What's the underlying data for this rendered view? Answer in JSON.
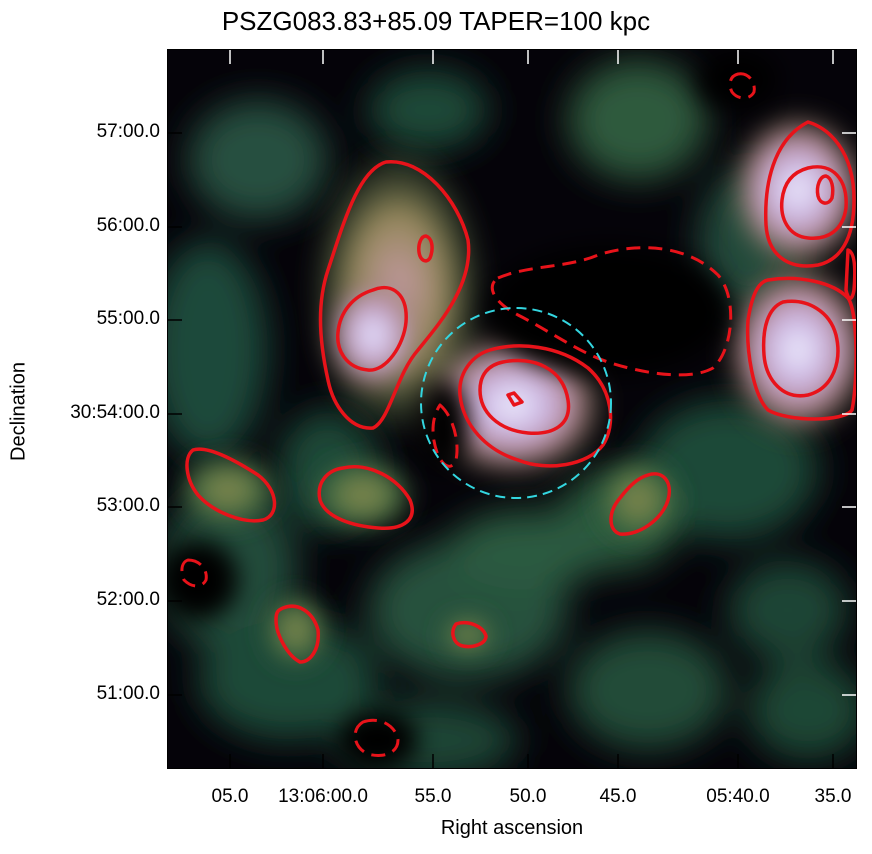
{
  "title": "PSZG083.83+85.09 TAPER=100 kpc",
  "axes": {
    "xlabel": "Right ascension",
    "ylabel": "Declination",
    "xticks": [
      "05.0",
      "13:06:00.0",
      "55.0",
      "50.0",
      "45.0",
      "05:40.0",
      "35.0"
    ],
    "yticks": [
      "57:00.0",
      "56:00.0",
      "55:00.0",
      "30:54:00.0",
      "53:00.0",
      "52:00.0",
      "51:00.0"
    ]
  },
  "colors": {
    "positive_contour": "#e8131a",
    "negative_contour": "#e8131a",
    "aperture_circle": "#33d6e0",
    "background": "#050309",
    "emission_low": "#1f4a32",
    "emission_mid": "#8c9a55",
    "emission_high": "#d8a0c8",
    "emission_peak": "#f2f4ff"
  }
}
